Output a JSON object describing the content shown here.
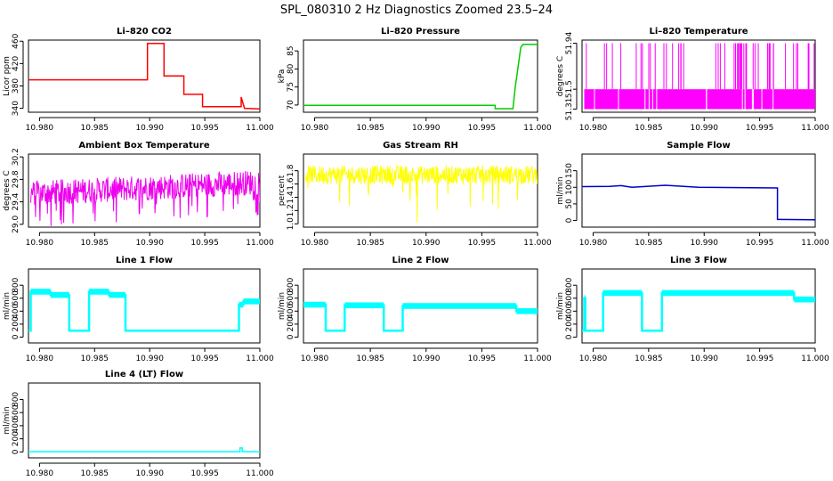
{
  "figure": {
    "title": "SPL_080310  2 Hz Diagnostics Zoomed 23.5–24"
  },
  "chart_data": [
    {
      "type": "line",
      "title": "Li–820 CO2",
      "ylabel": "Licor ppm",
      "color": "#ff0000",
      "xlim": [
        10.979,
        11.0
      ],
      "ylim": [
        333,
        462
      ],
      "xticks": [
        "10.980",
        "10.985",
        "10.990",
        "10.995",
        "11.000"
      ],
      "yticks": [
        340,
        380,
        420,
        460
      ],
      "series": [
        {
          "x": [
            10.979,
            10.9898,
            10.9898,
            10.9913,
            10.9913,
            10.9931,
            10.9931,
            10.9948,
            10.9948,
            10.9983,
            10.9983,
            10.9986,
            10.9986,
            11.0
          ],
          "y": [
            391,
            391,
            456,
            456,
            398,
            398,
            365,
            365,
            343,
            343,
            360,
            340,
            340,
            339
          ]
        }
      ]
    },
    {
      "type": "line",
      "title": "Li–820 Pressure",
      "ylabel": "kPa",
      "color": "#00cc00",
      "xlim": [
        10.979,
        11.0
      ],
      "ylim": [
        68,
        88
      ],
      "xticks": [
        "10.980",
        "10.985",
        "10.990",
        "10.995",
        "11.000"
      ],
      "yticks": [
        70,
        75,
        80,
        85
      ],
      "series": [
        {
          "x": [
            10.979,
            10.9962,
            10.9962,
            10.9978,
            10.998,
            10.9985,
            10.9987,
            11.0
          ],
          "y": [
            69.9,
            69.9,
            69.0,
            69.0,
            75,
            86,
            86.8,
            86.8
          ]
        }
      ]
    },
    {
      "type": "line",
      "title": "Li–820 Temperature",
      "ylabel": "degrees C",
      "color": "#ff00ff",
      "xlim": [
        10.979,
        11.0
      ],
      "ylim": [
        51.28,
        51.97
      ],
      "xticks": [
        "10.980",
        "10.985",
        "10.990",
        "10.995",
        "11.000"
      ],
      "yticks": [
        51.31,
        51.5,
        51.94
      ],
      "series": [
        {
          "x": [
            10.979,
            11.0
          ],
          "y": [
            51.31,
            51.5
          ]
        }
      ]
    },
    {
      "type": "line",
      "title": "Ambient Box Temperature",
      "ylabel": "degrees C",
      "color": "#ee00ee",
      "xlim": [
        10.979,
        11.0
      ],
      "ylim": [
        28.95,
        30.25
      ],
      "xticks": [
        "10.980",
        "10.985",
        "10.990",
        "10.995",
        "11.000"
      ],
      "yticks": [
        29.0,
        29.4,
        29.8,
        30.2
      ],
      "series": [
        {
          "x": [
            10.979,
            11.0
          ],
          "y": [
            29.6,
            29.8
          ]
        }
      ]
    },
    {
      "type": "line",
      "title": "Gas Stream RH",
      "ylabel": "percent",
      "color": "#ffff00",
      "xlim": [
        10.979,
        11.0
      ],
      "ylim": [
        0.95,
        2.05
      ],
      "xticks": [
        "10.980",
        "10.985",
        "10.990",
        "10.995",
        "11.000"
      ],
      "yticks": [
        1.0,
        1.2,
        1.4,
        1.6,
        1.8
      ],
      "series": [
        {
          "x": [
            10.979,
            11.0
          ],
          "y": [
            1.7,
            1.7
          ]
        }
      ]
    },
    {
      "type": "line",
      "title": "Sample Flow",
      "ylabel": "ml/min",
      "color": "#0000cc",
      "xlim": [
        10.979,
        11.0
      ],
      "ylim": [
        -20,
        200
      ],
      "xticks": [
        "10.980",
        "10.985",
        "10.990",
        "10.995",
        "11.000"
      ],
      "yticks": [
        0,
        50,
        100,
        150
      ],
      "series": [
        {
          "x": [
            10.979,
            10.9815,
            10.9825,
            10.9835,
            10.9855,
            10.9865,
            10.9875,
            10.9895,
            10.9966,
            10.9966,
            10.9968,
            11.0
          ],
          "y": [
            102,
            103,
            105,
            100,
            104,
            106,
            104,
            100,
            98,
            3,
            3,
            2
          ]
        }
      ]
    },
    {
      "type": "line",
      "title": "Line 1 Flow",
      "ylabel": "ml/min",
      "color": "#00ffff",
      "xlim": [
        10.979,
        11.0
      ],
      "ylim": [
        -90,
        1050
      ],
      "xticks": [
        "10.980",
        "10.985",
        "10.990",
        "10.995",
        "11.000"
      ],
      "yticks": [
        0,
        200,
        400,
        600,
        800
      ],
      "series": [
        {
          "x": [
            10.979,
            10.9792,
            10.9792,
            10.981,
            10.981,
            10.9827,
            10.9827,
            10.9845,
            10.9845,
            10.9863,
            10.9863,
            10.9878,
            10.9878,
            10.9981,
            10.9981,
            10.9985,
            10.9985,
            11.0
          ],
          "y": [
            100,
            100,
            700,
            700,
            650,
            650,
            100,
            100,
            700,
            700,
            650,
            650,
            100,
            100,
            500,
            500,
            550,
            550
          ]
        }
      ]
    },
    {
      "type": "line",
      "title": "Line 2 Flow",
      "ylabel": "ml/min",
      "color": "#00ffff",
      "xlim": [
        10.979,
        11.0
      ],
      "ylim": [
        -90,
        1050
      ],
      "xticks": [
        "10.980",
        "10.985",
        "10.990",
        "10.995",
        "11.000"
      ],
      "yticks": [
        0,
        200,
        400,
        600,
        800
      ],
      "series": [
        {
          "x": [
            10.979,
            10.981,
            10.981,
            10.9827,
            10.9827,
            10.9862,
            10.9862,
            10.9879,
            10.9879,
            10.9981,
            10.9981,
            11.0
          ],
          "y": [
            500,
            500,
            100,
            100,
            490,
            490,
            100,
            100,
            480,
            480,
            400,
            400
          ]
        }
      ]
    },
    {
      "type": "line",
      "title": "Line 3 Flow",
      "ylabel": "ml/min",
      "color": "#00ffff",
      "xlim": [
        10.979,
        11.0
      ],
      "ylim": [
        -90,
        1050
      ],
      "xticks": [
        "10.980",
        "10.985",
        "10.990",
        "10.995",
        "11.000"
      ],
      "yticks": [
        0,
        200,
        400,
        600,
        800
      ],
      "series": [
        {
          "x": [
            10.979,
            10.9792,
            10.9792,
            10.9793,
            10.9793,
            10.9809,
            10.9809,
            10.9844,
            10.9844,
            10.9862,
            10.9862,
            10.9981,
            10.9981,
            11.0
          ],
          "y": [
            100,
            100,
            600,
            600,
            100,
            100,
            680,
            680,
            100,
            100,
            680,
            680,
            580,
            580
          ]
        }
      ]
    },
    {
      "type": "line",
      "title": "Line 4 (LT) Flow",
      "ylabel": "ml/min",
      "color": "#00ffff",
      "xlim": [
        10.979,
        11.0
      ],
      "ylim": [
        -90,
        1050
      ],
      "xticks": [
        "10.980",
        "10.985",
        "10.990",
        "10.995",
        "11.000"
      ],
      "yticks": [
        0,
        200,
        400,
        600,
        800
      ],
      "series": [
        {
          "x": [
            10.979,
            10.9982,
            10.9982,
            10.9984,
            10.9984,
            11.0
          ],
          "y": [
            3,
            3,
            60,
            60,
            3,
            3
          ]
        }
      ]
    }
  ]
}
